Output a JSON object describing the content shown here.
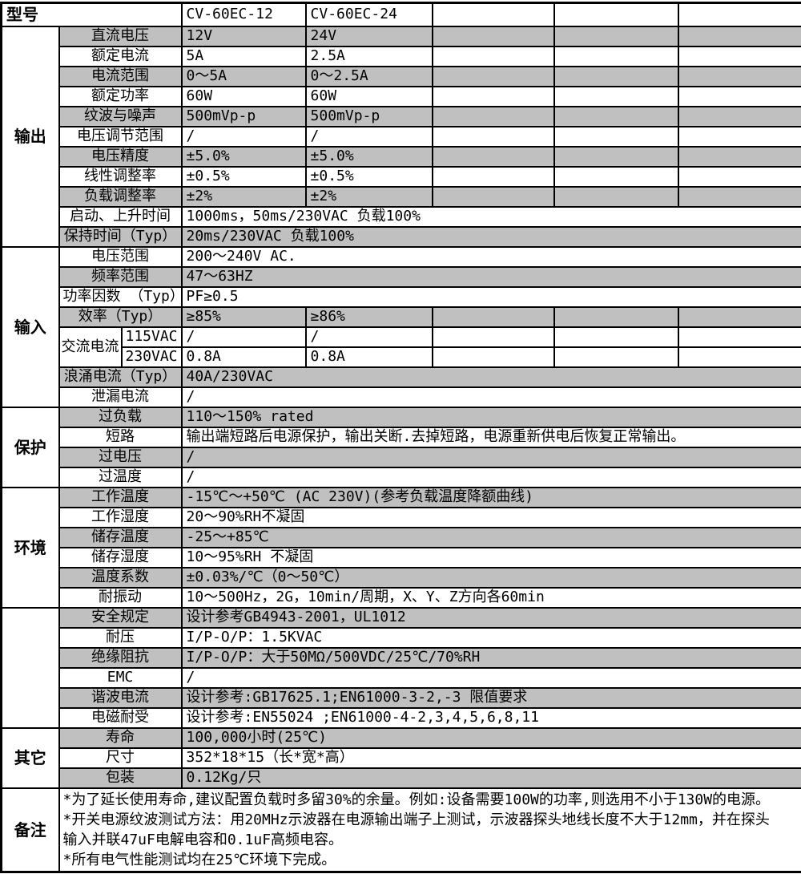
{
  "colors": {
    "row_shade": "#c0c0c0",
    "grid_line": "#000000",
    "text": "#000000",
    "background": "#ffffff"
  },
  "table": {
    "header": {
      "model_label": "型号",
      "models": [
        "CV-60EC-12",
        "CV-60EC-24"
      ],
      "empty_columns": 3
    },
    "sections": [
      {
        "label": "输出",
        "rows": [
          {
            "label": "直流电压",
            "cells": [
              "12V",
              "24V"
            ],
            "shaded": true
          },
          {
            "label": "额定电流",
            "cells": [
              "5A",
              "2.5A"
            ],
            "shaded": false
          },
          {
            "label": "电流范围",
            "cells": [
              "0～5A",
              "0～2.5A"
            ],
            "shaded": true
          },
          {
            "label": "额定功率",
            "cells": [
              "60W",
              "60W"
            ],
            "shaded": false
          },
          {
            "label": "纹波与噪声",
            "cells": [
              "500mVp-p",
              "500mVp-p"
            ],
            "shaded": true
          },
          {
            "label": "电压调节范围",
            "cells": [
              "/",
              "/"
            ],
            "shaded": false
          },
          {
            "label": "电压精度",
            "cells": [
              "±5.0%",
              "±5.0%"
            ],
            "shaded": true
          },
          {
            "label": "线性调整率",
            "cells": [
              "±0.5%",
              "±0.5%"
            ],
            "shaded": false
          },
          {
            "label": "负载调整率",
            "cells": [
              "±2%",
              "±2%"
            ],
            "shaded": true
          },
          {
            "label": "启动、上升时间",
            "span_value": "1000ms，50ms/230VAC 负载100%",
            "shaded": false
          },
          {
            "label": "保持时间（Typ）",
            "span_value": "20ms/230VAC 负载100%",
            "shaded": true
          }
        ]
      },
      {
        "label": "输入",
        "rows": [
          {
            "label": "电压范围",
            "span_value": "200～240V AC.",
            "shaded": false
          },
          {
            "label": "频率范围",
            "span_value": "47～63HZ",
            "shaded": true
          },
          {
            "label": "功率因数 （Typ）",
            "span_value": "PF≥0.5",
            "shaded": false
          },
          {
            "label": "效率（Typ）",
            "cells": [
              "≥85%",
              "≥86%"
            ],
            "shaded": true
          },
          {
            "group": "交流电流",
            "group_start": true,
            "sublabel": "115VAC",
            "cells": [
              "/",
              "/"
            ],
            "shaded": false
          },
          {
            "group": "交流电流",
            "sublabel": "230VAC",
            "cells": [
              "0.8A",
              "0.8A"
            ],
            "shaded": false
          },
          {
            "label": "浪涌电流（Typ）",
            "span_value": "40A/230VAC",
            "shaded": true
          },
          {
            "label": "泄漏电流",
            "span_value": "/",
            "shaded": false
          }
        ]
      },
      {
        "label": "保护",
        "rows": [
          {
            "label": "过负载",
            "span_value": "110～150% rated",
            "shaded": true
          },
          {
            "label": "短路",
            "span_value": "输出端短路后电源保护，输出关断.去掉短路，电源重新供电后恢复正常输出。",
            "shaded": false
          },
          {
            "label": "过电压",
            "span_value": "/",
            "shaded": true
          },
          {
            "label": "过温度",
            "span_value": "/",
            "shaded": false
          }
        ]
      },
      {
        "label": "环境",
        "rows": [
          {
            "label": "工作温度",
            "span_value": "-15℃～+50℃ (AC 230V)(参考负载温度降额曲线)",
            "shaded": true
          },
          {
            "label": "工作湿度",
            "span_value": "20～90%RH不凝固",
            "shaded": false
          },
          {
            "label": "储存温度",
            "span_value": "-25～+85℃",
            "shaded": true
          },
          {
            "label": "储存湿度",
            "span_value": "10～95%RH 不凝固",
            "shaded": false
          },
          {
            "label": "温度系数",
            "span_value": "±0.03%/℃（0～50℃）",
            "shaded": true
          },
          {
            "label": "耐振动",
            "span_value": "10～500Hz，2G，10min/周期，X、Y、Z方向各60min",
            "shaded": false
          }
        ]
      },
      {
        "label": "",
        "rows": [
          {
            "label": "安全规定",
            "span_value": "设计参考GB4943-2001，UL1012",
            "shaded": true
          },
          {
            "label": "耐压",
            "span_value": "I/P-O/P：1.5KVAC",
            "shaded": false
          },
          {
            "label": "绝缘阻抗",
            "span_value": "I/P-O/P：大于50MΩ/500VDC/25℃/70%RH",
            "shaded": true
          },
          {
            "label": "EMC",
            "span_value": "/",
            "shaded": false
          },
          {
            "label": "谐波电流",
            "span_value": "设计参考:GB17625.1;EN61000-3-2,-3 限值要求",
            "shaded": true
          },
          {
            "label": "电磁耐受",
            "span_value": "设计参考:EN55024 ;EN61000-4-2,3,4,5,6,8,11",
            "shaded": false
          }
        ]
      },
      {
        "label": "其它",
        "rows": [
          {
            "label": "寿命",
            "span_value": "100,000小时(25℃)",
            "shaded": true
          },
          {
            "label": "尺寸",
            "span_value": "352*18*15（长*宽*高）",
            "shaded": false
          },
          {
            "label": "包装",
            "span_value": "0.12Kg/只",
            "shaded": true
          }
        ]
      }
    ],
    "notes": {
      "label": "备注",
      "lines": [
        "*为了延长使用寿命,建议配置负载时多留30%的余量。例如:设备需要100W的功率,则选用不小于130W的电源。",
        "*开关电源纹波测试方法：用20MHz示波器在电源输出端子上测试，示波器探头地线长度不大于12mm，并在探头",
        "输入并联47uF电解电容和0.1uF高频电容。",
        "*所有电气性能测试均在25℃环境下完成。"
      ]
    }
  }
}
